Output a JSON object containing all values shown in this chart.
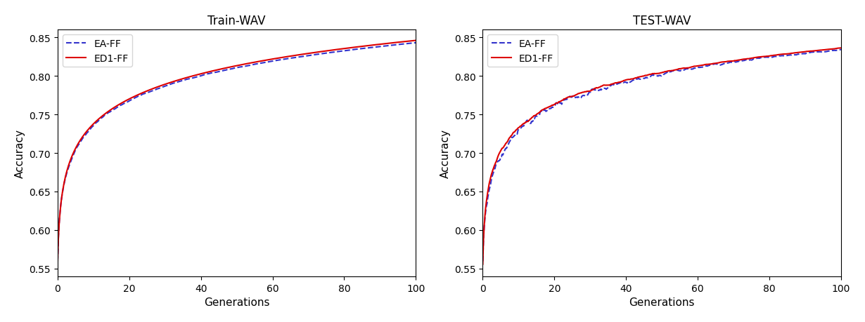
{
  "title_left": "Train-WAV",
  "title_right": "TEST-WAV",
  "xlabel": "Generations",
  "ylabel": "Accuracy",
  "xlim": [
    0,
    100
  ],
  "ylim": [
    0.54,
    0.86
  ],
  "yticks": [
    0.55,
    0.6,
    0.65,
    0.7,
    0.75,
    0.8,
    0.85
  ],
  "xticks": [
    0,
    20,
    40,
    60,
    80,
    100
  ],
  "legend_labels": [
    "EA-FF",
    "ED1-FF"
  ],
  "ea_color": "#3333cc",
  "ed1_color": "#dd0000",
  "ea_linestyle": "--",
  "ed1_linestyle": "-",
  "linewidth": 1.5,
  "figsize": [
    12.3,
    4.6
  ],
  "dpi": 100
}
